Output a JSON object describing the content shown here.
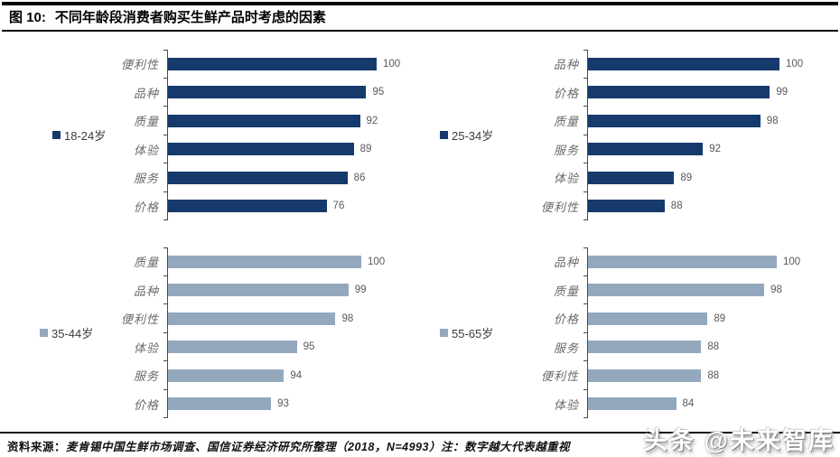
{
  "header": {
    "figure_label": "图 10:",
    "title": "不同年龄段消费者购买生鲜产品时考虑的因素"
  },
  "colors": {
    "navy": "#163a6c",
    "slate": "#93a8bd",
    "axis": "#4a4a4a"
  },
  "chart_data": [
    {
      "type": "bar",
      "orientation": "horizontal",
      "legend": "18-24岁",
      "color": "#163a6c",
      "axis_min": 0,
      "axis_max": 100,
      "grid": false,
      "legend_position": "left",
      "categories": [
        "便利性",
        "品种",
        "质量",
        "体验",
        "服务",
        "价格"
      ],
      "values": [
        100,
        95,
        92,
        89,
        86,
        76
      ]
    },
    {
      "type": "bar",
      "orientation": "horizontal",
      "legend": "25-34岁",
      "color": "#163a6c",
      "axis_min": 80,
      "axis_max": 100,
      "grid": false,
      "legend_position": "left",
      "categories": [
        "品种",
        "价格",
        "质量",
        "服务",
        "体验",
        "便利性"
      ],
      "values": [
        100,
        99,
        98,
        92,
        89,
        88
      ]
    },
    {
      "type": "bar",
      "orientation": "horizontal",
      "legend": "35-44岁",
      "color": "#93a8bd",
      "axis_min": 85,
      "axis_max": 100,
      "grid": false,
      "legend_position": "left",
      "categories": [
        "质量",
        "品种",
        "便利性",
        "体验",
        "服务",
        "价格"
      ],
      "values": [
        100,
        99,
        98,
        95,
        94,
        93
      ]
    },
    {
      "type": "bar",
      "orientation": "horizontal",
      "legend": "55-65岁",
      "color": "#93a8bd",
      "axis_min": 70,
      "axis_max": 100,
      "grid": false,
      "legend_position": "left",
      "categories": [
        "品种",
        "质量",
        "价格",
        "服务",
        "便利性",
        "体验"
      ],
      "values": [
        100,
        98,
        89,
        88,
        88,
        84
      ]
    }
  ],
  "footer": {
    "source_label": "资料来源：",
    "source_text": "麦肯锡中国生鲜市场调查、国信证券经济研究所整理（2018，N=4993）",
    "note": "注：数字越大代表越重视"
  },
  "watermark": "头条 @未来智库"
}
